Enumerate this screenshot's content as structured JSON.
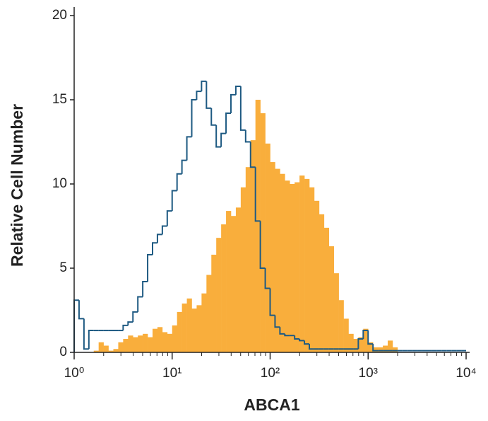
{
  "chart_data": {
    "type": "histogram",
    "xlabel": "ABCA1",
    "ylabel": "Relative Cell Number",
    "xscale": "log",
    "minor_ticks": true,
    "xlim": [
      1,
      10000
    ],
    "ylim": [
      0,
      20
    ],
    "xticks": [
      {
        "value": 1,
        "label": "10⁰"
      },
      {
        "value": 10,
        "label": "10¹"
      },
      {
        "value": 100,
        "label": "10²"
      },
      {
        "value": 1000,
        "label": "10³"
      },
      {
        "value": 10000,
        "label": "10⁴"
      }
    ],
    "yticks": [
      0,
      5,
      10,
      15,
      20
    ],
    "bins": [
      1,
      1.122,
      1.259,
      1.413,
      1.585,
      1.778,
      1.995,
      2.239,
      2.512,
      2.818,
      3.162,
      3.548,
      3.981,
      4.467,
      5.012,
      5.623,
      6.31,
      7.079,
      7.943,
      8.913,
      10,
      11.22,
      12.59,
      14.13,
      15.85,
      17.78,
      19.95,
      22.39,
      25.12,
      28.18,
      31.62,
      35.48,
      39.81,
      44.67,
      50.12,
      56.23,
      63.1,
      70.79,
      79.43,
      89.13,
      100,
      112.2,
      125.9,
      141.3,
      158.5,
      177.8,
      199.5,
      223.9,
      251.2,
      281.8,
      316.2,
      354.8,
      398.1,
      446.7,
      501.2,
      562.3,
      631,
      707.9,
      794.3,
      891.3,
      1000,
      1122,
      1259,
      1413,
      1585,
      1778,
      1995,
      2239,
      2512,
      2818,
      3162,
      3548,
      3981,
      4467,
      5012,
      5623,
      6310,
      7079,
      7943,
      8913,
      10000
    ],
    "series": [
      {
        "style": "filled",
        "color": "#f9ae3c",
        "values": [
          0,
          0,
          0,
          0,
          0.1,
          0.6,
          0.4,
          0.1,
          0.2,
          0.6,
          0.8,
          1.0,
          0.9,
          1.0,
          1.1,
          0.9,
          1.4,
          1.5,
          1.2,
          1.1,
          1.6,
          2.4,
          2.9,
          3.2,
          2.6,
          2.8,
          3.5,
          4.6,
          5.8,
          6.8,
          7.6,
          8.4,
          8.1,
          8.6,
          9.8,
          11.0,
          12.6,
          15.0,
          14.2,
          12.4,
          11.3,
          10.9,
          10.6,
          10.2,
          10.0,
          10.1,
          10.5,
          10.3,
          9.8,
          9.0,
          8.2,
          7.4,
          6.3,
          4.7,
          3.1,
          2.0,
          1.1,
          0.8,
          0.9,
          1.4,
          0.6,
          0.3,
          0.3,
          0.4,
          0.7,
          0.3,
          0,
          0,
          0,
          0,
          0,
          0,
          0,
          0,
          0,
          0,
          0,
          0,
          0,
          0
        ]
      },
      {
        "style": "outline",
        "color": "#1e5a82",
        "values": [
          3.1,
          2.0,
          0.2,
          1.3,
          1.3,
          1.3,
          1.3,
          1.3,
          1.3,
          1.3,
          1.6,
          1.8,
          2.4,
          3.3,
          4.2,
          5.8,
          6.5,
          7.0,
          7.5,
          8.4,
          9.6,
          10.6,
          11.4,
          12.8,
          15.0,
          15.5,
          16.1,
          14.5,
          13.5,
          12.2,
          13.0,
          14.2,
          15.3,
          15.8,
          13.2,
          12.5,
          11.0,
          7.8,
          5.0,
          3.8,
          2.2,
          1.5,
          1.1,
          1.0,
          1.0,
          0.8,
          0.7,
          0.5,
          0.2,
          0.2,
          0.2,
          0.2,
          0.2,
          0.2,
          0.2,
          0.2,
          0.2,
          0.2,
          0.8,
          1.3,
          0.5,
          0.1,
          0.1,
          0.1,
          0.1,
          0.1,
          0.1,
          0.1,
          0.1,
          0.1,
          0.1,
          0.1,
          0.1,
          0.1,
          0.1,
          0.1,
          0.1,
          0.1,
          0.1,
          0.1
        ]
      }
    ]
  }
}
